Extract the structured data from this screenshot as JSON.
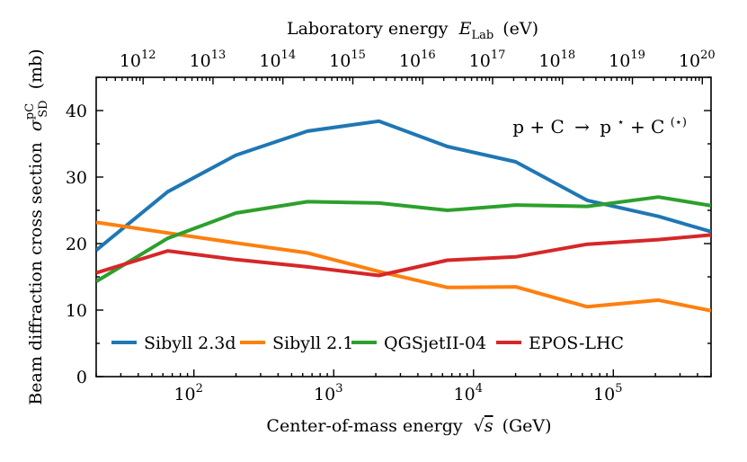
{
  "chart_data": {
    "type": "line",
    "title": "",
    "annotation": "p + C → p* + C(*)",
    "annotation_parts": {
      "lhs": "p + C",
      "arrow": "→",
      "rhs_p": "p",
      "star": "⋆",
      "plus_c": " + C",
      "paren_star": "(⋆)"
    },
    "xlabel": {
      "text": "Center-of-mass energy",
      "sqrt": "√",
      "var": "s",
      "unit": "(GeV)"
    },
    "ylabel": {
      "text": "Beam diffraction cross section",
      "sym": "σ",
      "sup": "pC",
      "sub": "SD",
      "unit": "(mb)"
    },
    "top_xlabel": {
      "text": "Laboratory energy",
      "var": "E",
      "sub": "Lab",
      "unit": "(eV)"
    },
    "xscale": "log",
    "xlim": [
      20,
      500000
    ],
    "ylim": [
      0,
      45
    ],
    "x_ticks": [
      {
        "value": 100,
        "base": "10",
        "exp": "2"
      },
      {
        "value": 1000,
        "base": "10",
        "exp": "3"
      },
      {
        "value": 10000,
        "base": "10",
        "exp": "4"
      },
      {
        "value": 100000,
        "base": "10",
        "exp": "5"
      }
    ],
    "y_ticks": [
      {
        "value": 0,
        "label": "0"
      },
      {
        "value": 10,
        "label": "10"
      },
      {
        "value": 20,
        "label": "20"
      },
      {
        "value": 30,
        "label": "30"
      },
      {
        "value": 40,
        "label": "40"
      }
    ],
    "top_ticks": [
      {
        "exp_value": 12,
        "base": "10",
        "exp": "12"
      },
      {
        "exp_value": 13,
        "base": "10",
        "exp": "13"
      },
      {
        "exp_value": 14,
        "base": "10",
        "exp": "14"
      },
      {
        "exp_value": 15,
        "base": "10",
        "exp": "15"
      },
      {
        "exp_value": 16,
        "base": "10",
        "exp": "16"
      },
      {
        "exp_value": 17,
        "base": "10",
        "exp": "17"
      },
      {
        "exp_value": 18,
        "base": "10",
        "exp": "18"
      },
      {
        "exp_value": 19,
        "base": "10",
        "exp": "19"
      },
      {
        "exp_value": 20,
        "base": "10",
        "exp": "20"
      }
    ],
    "legend_position": "bottom",
    "series": [
      {
        "name": "Sibyll 2.3d",
        "color": "#1f77b4",
        "x": [
          20,
          65,
          200,
          650,
          2100,
          6500,
          20000,
          65000,
          210000,
          500000
        ],
        "y": [
          19.0,
          27.8,
          33.3,
          36.9,
          38.4,
          34.6,
          32.3,
          26.5,
          24.1,
          21.8
        ]
      },
      {
        "name": "Sibyll 2.1",
        "color": "#ff7f0e",
        "x": [
          20,
          65,
          200,
          650,
          2100,
          6500,
          20000,
          65000,
          210000,
          500000
        ],
        "y": [
          23.2,
          21.6,
          20.1,
          18.6,
          15.8,
          13.4,
          13.5,
          10.5,
          11.5,
          9.9
        ]
      },
      {
        "name": "QGSjetII-04",
        "color": "#2ca02c",
        "x": [
          20,
          65,
          200,
          650,
          2100,
          6500,
          20000,
          65000,
          210000,
          500000
        ],
        "y": [
          14.3,
          20.8,
          24.6,
          26.3,
          26.1,
          25.0,
          25.8,
          25.6,
          27.0,
          25.7
        ]
      },
      {
        "name": "EPOS-LHC",
        "color": "#d62728",
        "x": [
          20,
          65,
          200,
          650,
          2100,
          6500,
          20000,
          65000,
          210000,
          500000
        ],
        "y": [
          15.6,
          18.9,
          17.6,
          16.5,
          15.2,
          17.5,
          18.0,
          19.9,
          20.6,
          21.3
        ]
      }
    ]
  }
}
